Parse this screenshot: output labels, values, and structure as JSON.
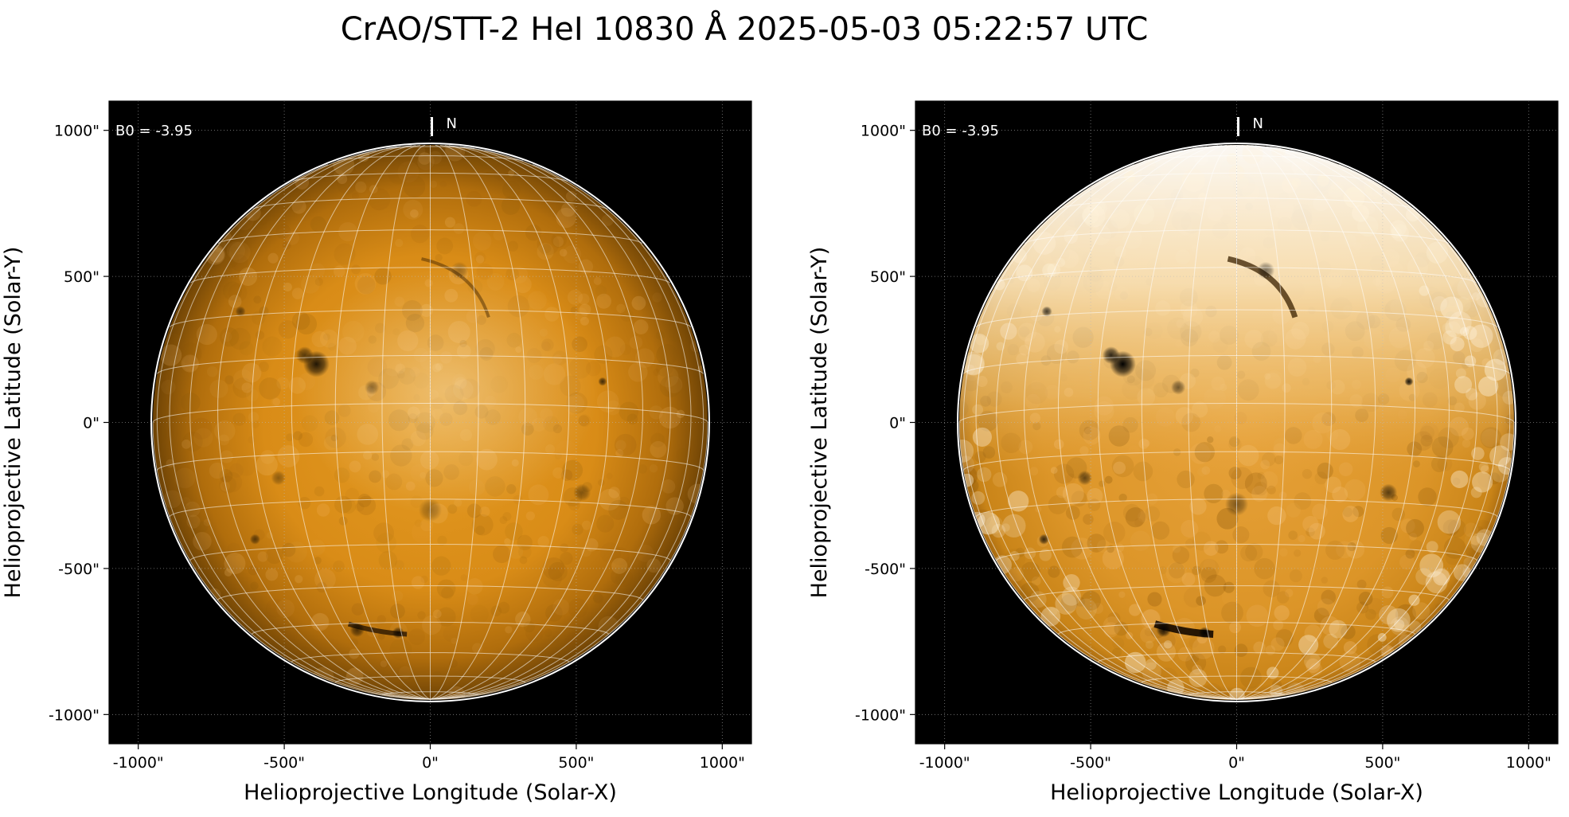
{
  "title": "CrAO/STT-2 HeI 10830 Å 2025-05-03 05:22:57 UTC",
  "chart_data": [
    {
      "type": "heatmap",
      "panel": "left",
      "xlabel": "Helioprojective Longitude (Solar-X)",
      "ylabel": "Helioprojective Latitude (Solar-Y)",
      "xlim": [
        -1100,
        1100
      ],
      "ylim": [
        -1100,
        1100
      ],
      "x_ticks": [
        -1000,
        -500,
        0,
        500,
        1000
      ],
      "y_ticks": [
        -1000,
        -500,
        0,
        500,
        1000
      ],
      "x_tick_labels": [
        "-1000\"",
        "-500\"",
        "0\"",
        "500\"",
        "1000\""
      ],
      "y_tick_labels": [
        "-1000\"",
        "-500\"",
        "0\"",
        "500\"",
        "1000\""
      ],
      "solar_radius_arcsec": 950,
      "annotation": "B0 = -3.95",
      "north_label": "N",
      "grid": true,
      "colormap": "orange",
      "features": [
        {
          "x": -390,
          "y": 200,
          "size": 45,
          "intensity": 0.85
        },
        {
          "x": -430,
          "y": 230,
          "size": 30,
          "intensity": 0.6
        },
        {
          "x": -200,
          "y": 120,
          "size": 25,
          "intensity": 0.35
        },
        {
          "x": 590,
          "y": 140,
          "size": 15,
          "intensity": 0.7
        },
        {
          "x": -250,
          "y": -710,
          "size": 25,
          "intensity": 0.6
        },
        {
          "x": -110,
          "y": -720,
          "size": 20,
          "intensity": 0.7
        },
        {
          "x": -600,
          "y": -400,
          "size": 18,
          "intensity": 0.55
        },
        {
          "x": 520,
          "y": -240,
          "size": 30,
          "intensity": 0.4
        },
        {
          "x": -520,
          "y": -190,
          "size": 25,
          "intensity": 0.35
        },
        {
          "x": 100,
          "y": 520,
          "size": 30,
          "intensity": 0.3
        },
        {
          "x": -650,
          "y": 380,
          "size": 18,
          "intensity": 0.5
        },
        {
          "x": 0,
          "y": -300,
          "size": 40,
          "intensity": 0.3
        }
      ]
    },
    {
      "type": "heatmap",
      "panel": "right",
      "xlabel": "Helioprojective Longitude (Solar-X)",
      "ylabel": "Helioprojective Latitude (Solar-Y)",
      "xlim": [
        -1100,
        1100
      ],
      "ylim": [
        -1100,
        1100
      ],
      "x_ticks": [
        -1000,
        -500,
        0,
        500,
        1000
      ],
      "y_ticks": [
        -1000,
        -500,
        0,
        500,
        1000
      ],
      "x_tick_labels": [
        "-1000\"",
        "-500\"",
        "0\"",
        "500\"",
        "1000\""
      ],
      "y_tick_labels": [
        "-1000\"",
        "-500\"",
        "0\"",
        "500\"",
        "1000\""
      ],
      "solar_radius_arcsec": 950,
      "annotation": "B0 = -3.95",
      "north_label": "N",
      "grid": true,
      "colormap": "orange-enhanced",
      "features": [
        {
          "x": -390,
          "y": 200,
          "size": 45,
          "intensity": 1.0
        },
        {
          "x": -430,
          "y": 230,
          "size": 30,
          "intensity": 0.8
        },
        {
          "x": -200,
          "y": 120,
          "size": 25,
          "intensity": 0.5
        },
        {
          "x": 590,
          "y": 140,
          "size": 15,
          "intensity": 0.9
        },
        {
          "x": -250,
          "y": -710,
          "size": 25,
          "intensity": 0.85
        },
        {
          "x": -110,
          "y": -720,
          "size": 20,
          "intensity": 0.9
        },
        {
          "x": -660,
          "y": -400,
          "size": 18,
          "intensity": 0.75
        },
        {
          "x": 520,
          "y": -240,
          "size": 30,
          "intensity": 0.6
        },
        {
          "x": -520,
          "y": -190,
          "size": 25,
          "intensity": 0.55
        },
        {
          "x": 100,
          "y": 520,
          "size": 30,
          "intensity": 0.5
        },
        {
          "x": -650,
          "y": 380,
          "size": 18,
          "intensity": 0.7
        },
        {
          "x": 0,
          "y": -280,
          "size": 40,
          "intensity": 0.45
        }
      ]
    }
  ]
}
